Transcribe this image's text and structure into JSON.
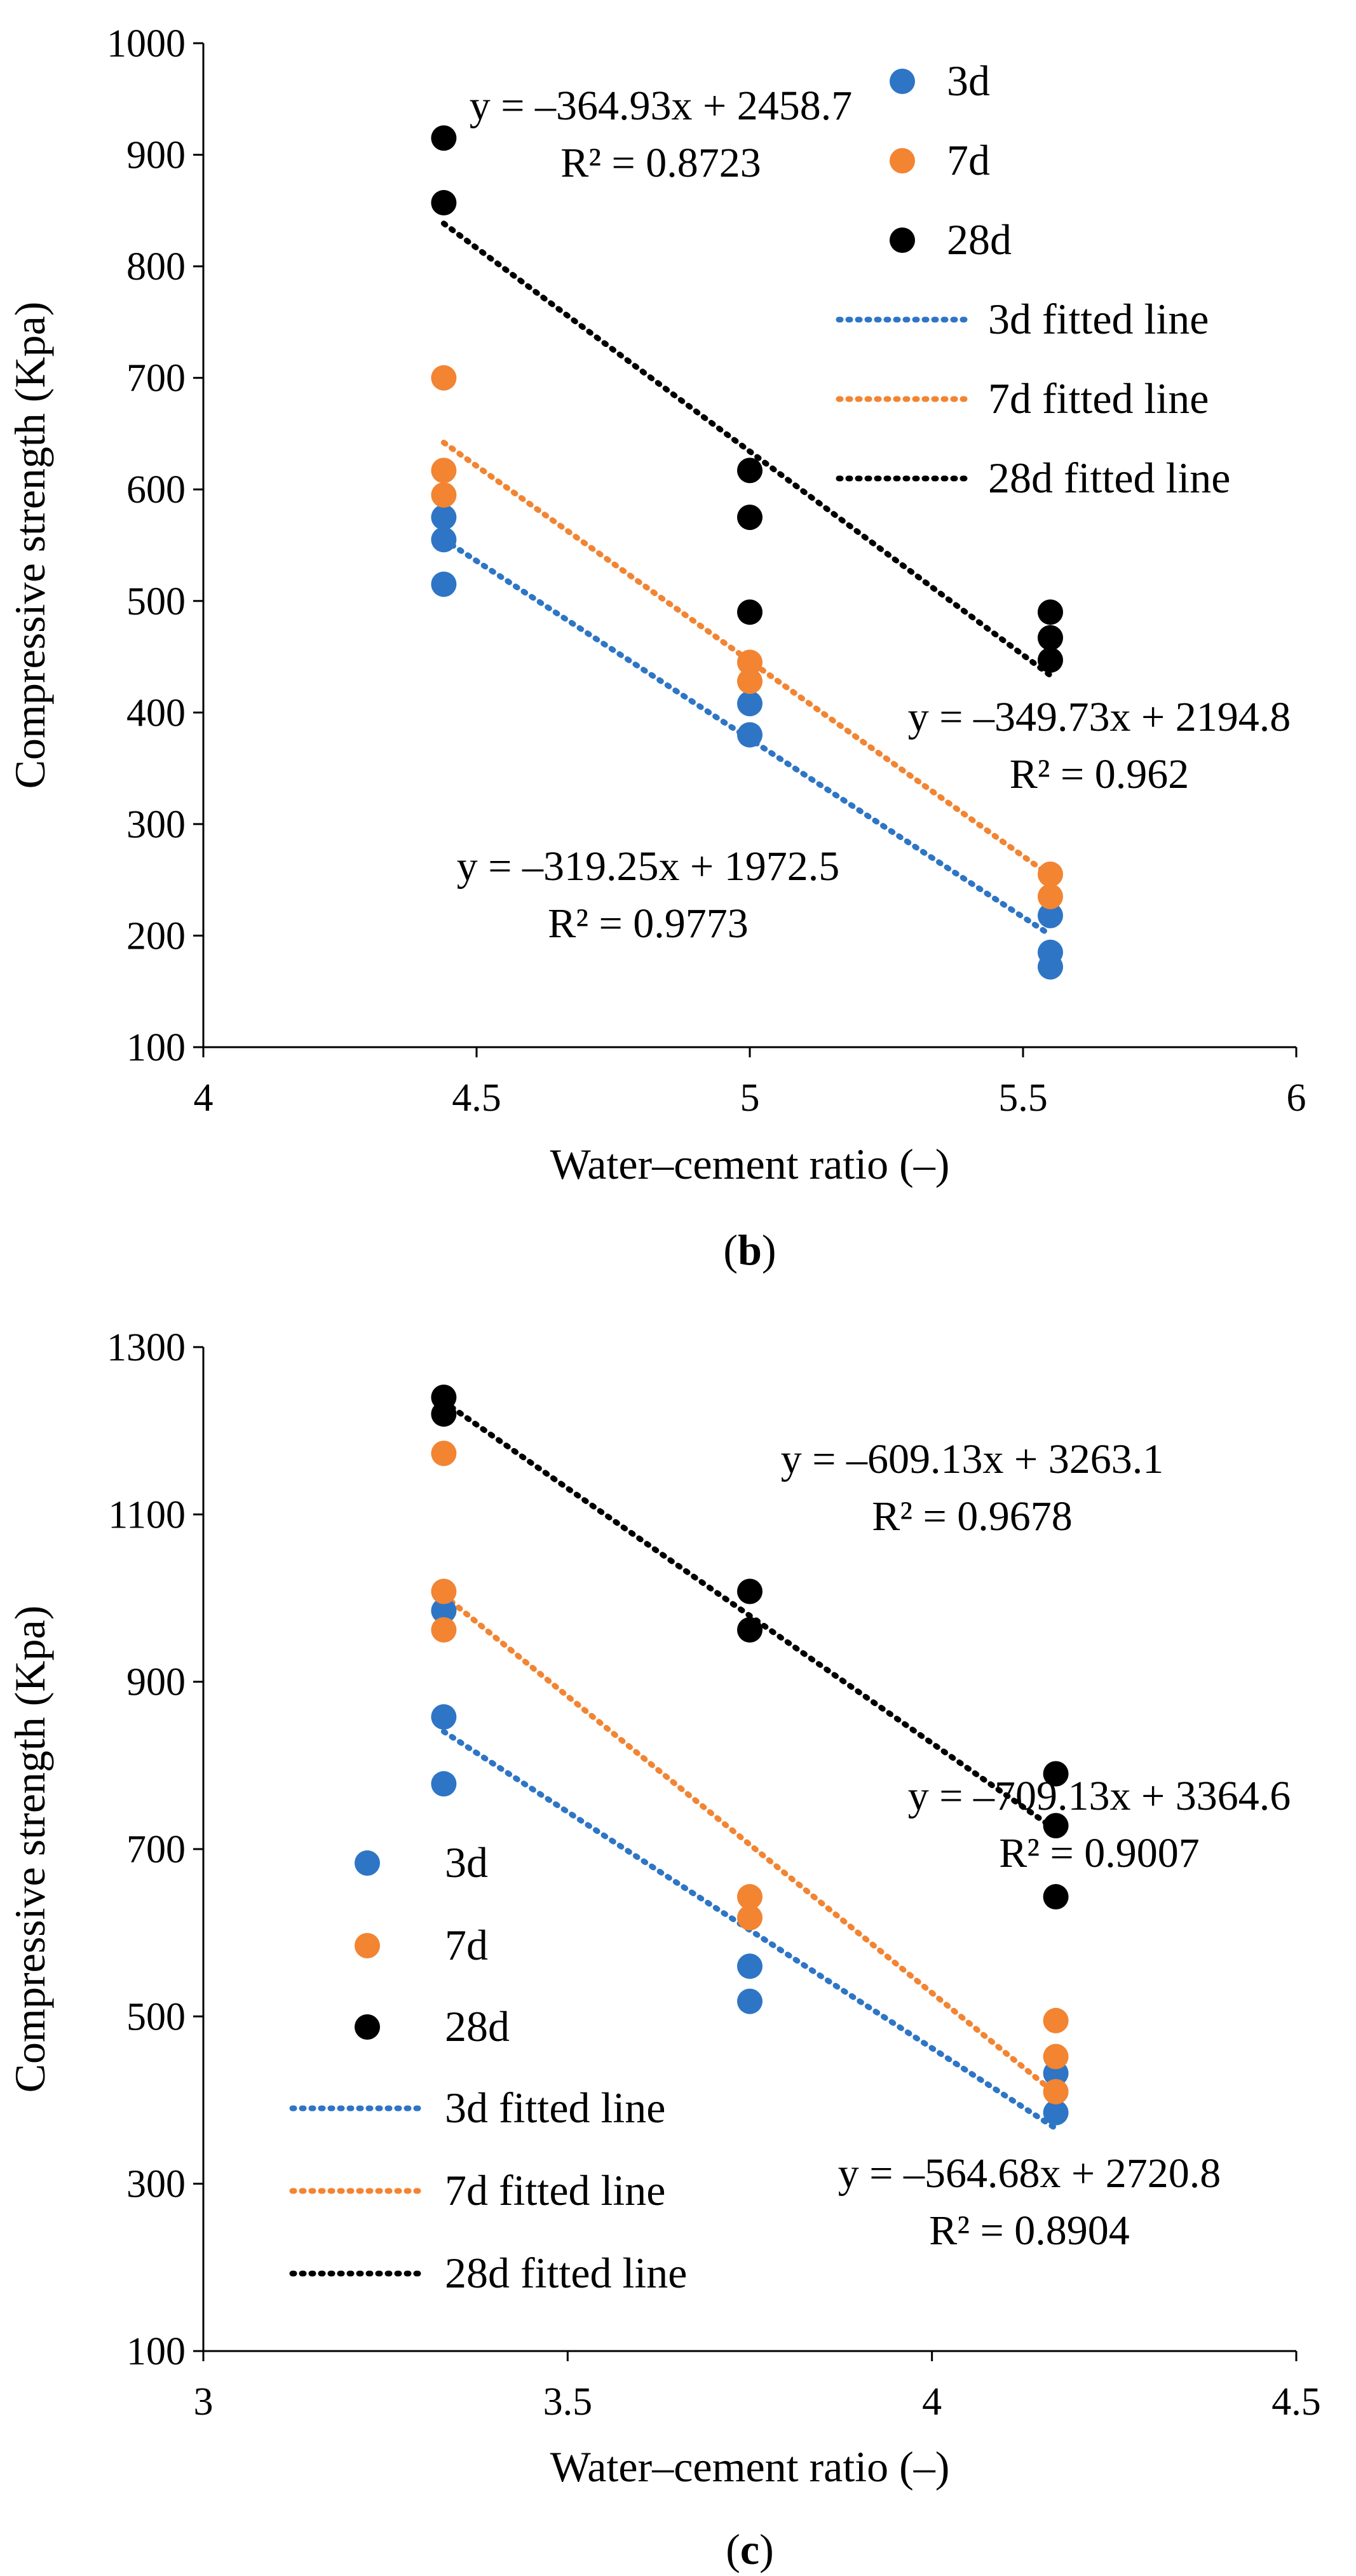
{
  "colors": {
    "3d": "#2e75c5",
    "7d": "#f28432",
    "28d": "#000000",
    "axis": "#000000"
  },
  "chart_data": [
    {
      "type": "scatter",
      "caption": "(b)",
      "caption_prefix": "(",
      "caption_letter": "b",
      "caption_suffix": ")",
      "xlabel": "Water–cement ratio (–)",
      "ylabel": "Compressive strength (Kpa)",
      "xlim": [
        4,
        6
      ],
      "ylim": [
        100,
        1000
      ],
      "xticks": [
        4,
        4.5,
        5,
        5.5,
        6
      ],
      "xtick_labels": [
        "4",
        "4.5",
        "5",
        "5.5",
        "6"
      ],
      "yticks": [
        100,
        200,
        300,
        400,
        500,
        600,
        700,
        800,
        900,
        1000
      ],
      "ytick_labels": [
        "100",
        "200",
        "300",
        "400",
        "500",
        "600",
        "700",
        "800",
        "900",
        "1000"
      ],
      "grid": false,
      "legend_position": "top-right",
      "series": [
        {
          "name": "3d",
          "color_key": "3d",
          "points": [
            [
              4.44,
              515
            ],
            [
              4.44,
              555
            ],
            [
              4.44,
              575
            ],
            [
              5.0,
              380
            ],
            [
              5.0,
              408
            ],
            [
              5.55,
              172
            ],
            [
              5.55,
              185
            ],
            [
              5.55,
              218
            ]
          ]
        },
        {
          "name": "7d",
          "color_key": "7d",
          "points": [
            [
              4.44,
              595
            ],
            [
              4.44,
              617
            ],
            [
              4.44,
              700
            ],
            [
              5.0,
              428
            ],
            [
              5.0,
              445
            ],
            [
              5.55,
              235
            ],
            [
              5.55,
              255
            ]
          ]
        },
        {
          "name": "28d",
          "color_key": "28d",
          "points": [
            [
              4.44,
              857
            ],
            [
              4.44,
              915
            ],
            [
              5.0,
              490
            ],
            [
              5.0,
              575
            ],
            [
              5.0,
              617
            ],
            [
              5.55,
              447
            ],
            [
              5.55,
              467
            ],
            [
              5.55,
              490
            ]
          ]
        }
      ],
      "fitted_lines": [
        {
          "name": "3d fitted line",
          "color_key": "3d",
          "slope": -319.25,
          "intercept": 1972.5,
          "x_range": [
            4.44,
            5.55
          ],
          "equation": "y = –319.25x + 1972.5",
          "r2": "R² = 0.9773"
        },
        {
          "name": "7d fitted line",
          "color_key": "7d",
          "slope": -349.73,
          "intercept": 2194.8,
          "x_range": [
            4.44,
            5.55
          ],
          "equation": "y = –349.73x + 2194.8",
          "r2": "R² = 0.962"
        },
        {
          "name": "28d fitted line",
          "color_key": "28d",
          "slope": -364.93,
          "intercept": 2458.7,
          "x_range": [
            4.44,
            5.55
          ],
          "equation": "y = –364.93x + 2458.7",
          "r2": "R² = 0.8723"
        }
      ]
    },
    {
      "type": "scatter",
      "caption": "(c)",
      "caption_prefix": "(",
      "caption_letter": "c",
      "caption_suffix": ")",
      "xlabel": "Water–cement ratio (–)",
      "ylabel": "Compressive strength (Kpa)",
      "xlim": [
        3,
        4.5
      ],
      "ylim": [
        100,
        1300
      ],
      "xticks": [
        3,
        3.5,
        4,
        4.5
      ],
      "xtick_labels": [
        "3",
        "3.5",
        "4",
        "4.5"
      ],
      "yticks": [
        100,
        300,
        500,
        700,
        900,
        1100,
        1300
      ],
      "ytick_labels": [
        "100",
        "300",
        "500",
        "700",
        "900",
        "1100",
        "1300"
      ],
      "grid": false,
      "legend_position": "bottom-left",
      "series": [
        {
          "name": "3d",
          "color_key": "3d",
          "points": [
            [
              3.33,
              778
            ],
            [
              3.33,
              858
            ],
            [
              3.33,
              985
            ],
            [
              3.75,
              518
            ],
            [
              3.75,
              560
            ],
            [
              4.17,
              385
            ],
            [
              4.17,
              432
            ]
          ]
        },
        {
          "name": "7d",
          "color_key": "7d",
          "points": [
            [
              3.33,
              962
            ],
            [
              3.33,
              1008
            ],
            [
              3.33,
              1173
            ],
            [
              3.75,
              618
            ],
            [
              3.75,
              643
            ],
            [
              4.17,
              410
            ],
            [
              4.17,
              452
            ],
            [
              4.17,
              495
            ]
          ]
        },
        {
          "name": "28d",
          "color_key": "28d",
          "points": [
            [
              3.33,
              1220
            ],
            [
              3.33,
              1240
            ],
            [
              3.75,
              962
            ],
            [
              3.75,
              1008
            ],
            [
              4.17,
              643
            ],
            [
              4.17,
              728
            ],
            [
              4.17,
              790
            ]
          ]
        }
      ],
      "fitted_lines": [
        {
          "name": "3d fitted line",
          "color_key": "3d",
          "slope": -564.68,
          "intercept": 2720.8,
          "x_range": [
            3.33,
            4.17
          ],
          "equation": "y = –564.68x + 2720.8",
          "r2": "R² = 0.8904"
        },
        {
          "name": "7d fitted line",
          "color_key": "7d",
          "slope": -709.13,
          "intercept": 3364.6,
          "x_range": [
            3.33,
            4.17
          ],
          "equation": "y = –709.13x + 3364.6",
          "r2": "R² = 0.9007"
        },
        {
          "name": "28d fitted line",
          "color_key": "28d",
          "slope": -609.13,
          "intercept": 3263.1,
          "x_range": [
            3.33,
            4.17
          ],
          "equation": "y = –609.13x + 3263.1",
          "r2": "R² = 0.9678"
        }
      ]
    }
  ]
}
